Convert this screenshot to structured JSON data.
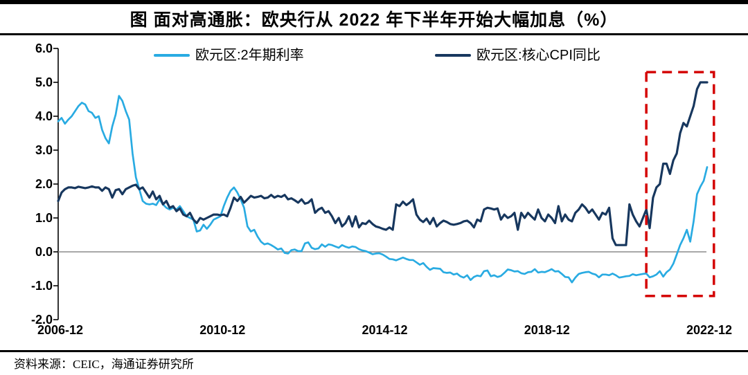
{
  "header": {
    "title": "图  面对高通胀：欧央行从 2022 年下半年开始大幅加息（%）"
  },
  "footer": {
    "source": "资料来源：CEIC，海通证券研究所"
  },
  "chart_data": {
    "type": "line",
    "title": "图  面对高通胀：欧央行从 2022 年下半年开始大幅加息（%）",
    "x_start": "2006-12",
    "x_end": "2022-12",
    "x_interval": "1 month",
    "x_tick_labels": [
      "2006-12",
      "2010-12",
      "2014-12",
      "2018-12",
      "2022-12"
    ],
    "x_tick_month_indices": [
      0,
      48,
      96,
      144,
      192
    ],
    "ylim": [
      -2.0,
      6.0
    ],
    "y_tick_labels": [
      "6.0",
      "5.0",
      "4.0",
      "3.0",
      "2.0",
      "1.0",
      "0.0",
      "-1.0",
      "-2.0"
    ],
    "y_tick_values": [
      6,
      5,
      4,
      3,
      2,
      1,
      0,
      -1,
      -2
    ],
    "grid": false,
    "zero_baseline": true,
    "zero_baseline_color": "#8C8C8C",
    "legend_position": "top",
    "series": [
      {
        "name": "欧元区:2年期利率",
        "color": "#29ABE2",
        "values": [
          3.85,
          3.95,
          3.78,
          3.9,
          4.0,
          4.15,
          4.3,
          4.4,
          4.35,
          4.15,
          4.1,
          3.95,
          4.0,
          3.6,
          3.35,
          3.2,
          3.7,
          4.05,
          4.6,
          4.45,
          4.15,
          3.9,
          2.9,
          2.2,
          1.85,
          1.5,
          1.42,
          1.4,
          1.42,
          1.38,
          1.55,
          1.4,
          1.3,
          1.25,
          1.3,
          1.25,
          1.35,
          1.2,
          1.05,
          1.0,
          0.95,
          0.6,
          0.63,
          0.8,
          0.68,
          0.8,
          0.95,
          1.0,
          1.05,
          1.35,
          1.6,
          1.8,
          1.9,
          1.75,
          1.55,
          1.3,
          0.75,
          0.6,
          0.65,
          0.45,
          0.3,
          0.22,
          0.25,
          0.2,
          0.14,
          0.07,
          0.1,
          -0.03,
          -0.05,
          0.05,
          0.07,
          0.02,
          0.02,
          0.25,
          0.28,
          0.12,
          0.08,
          0.1,
          0.22,
          0.15,
          0.22,
          0.2,
          0.16,
          0.12,
          0.2,
          0.15,
          0.12,
          0.16,
          0.14,
          0.08,
          0.04,
          0.02,
          -0.02,
          -0.07,
          -0.05,
          -0.04,
          -0.08,
          -0.14,
          -0.21,
          -0.22,
          -0.25,
          -0.21,
          -0.17,
          -0.21,
          -0.24,
          -0.24,
          -0.31,
          -0.38,
          -0.33,
          -0.44,
          -0.53,
          -0.48,
          -0.49,
          -0.5,
          -0.6,
          -0.62,
          -0.61,
          -0.67,
          -0.64,
          -0.72,
          -0.76,
          -0.69,
          -0.83,
          -0.74,
          -0.7,
          -0.72,
          -0.57,
          -0.55,
          -0.72,
          -0.69,
          -0.74,
          -0.71,
          -0.62,
          -0.52,
          -0.54,
          -0.58,
          -0.57,
          -0.63,
          -0.65,
          -0.6,
          -0.59,
          -0.51,
          -0.61,
          -0.59,
          -0.6,
          -0.56,
          -0.51,
          -0.58,
          -0.57,
          -0.65,
          -0.74,
          -0.75,
          -0.9,
          -0.76,
          -0.65,
          -0.62,
          -0.6,
          -0.59,
          -0.64,
          -0.67,
          -0.75,
          -0.67,
          -0.67,
          -0.69,
          -0.64,
          -0.69,
          -0.76,
          -0.74,
          -0.72,
          -0.71,
          -0.66,
          -0.69,
          -0.67,
          -0.65,
          -0.64,
          -0.75,
          -0.72,
          -0.67,
          -0.57,
          -0.73,
          -0.6,
          -0.52,
          -0.35,
          -0.08,
          0.2,
          0.4,
          0.65,
          0.3,
          0.9,
          1.7,
          1.92,
          2.1,
          2.5
        ]
      },
      {
        "name": "欧元区:核心CPI同比",
        "color": "#17375E",
        "values": [
          1.5,
          1.75,
          1.85,
          1.9,
          1.9,
          1.88,
          1.92,
          1.9,
          1.88,
          1.9,
          1.93,
          1.9,
          1.9,
          1.8,
          1.9,
          1.85,
          1.6,
          1.82,
          1.85,
          1.7,
          1.85,
          1.9,
          1.95,
          1.98,
          1.85,
          1.9,
          1.75,
          1.6,
          1.78,
          1.55,
          1.65,
          1.4,
          1.5,
          1.3,
          1.35,
          1.2,
          1.28,
          1.1,
          1.05,
          1.15,
          0.95,
          0.85,
          1.0,
          0.95,
          1.0,
          1.05,
          1.1,
          1.1,
          1.08,
          1.1,
          1.05,
          1.3,
          1.6,
          1.5,
          1.62,
          1.45,
          1.55,
          1.65,
          1.6,
          1.62,
          1.65,
          1.58,
          1.6,
          1.68,
          1.6,
          1.65,
          1.62,
          1.68,
          1.55,
          1.58,
          1.52,
          1.45,
          1.55,
          1.42,
          1.45,
          1.55,
          1.15,
          1.25,
          1.3,
          1.15,
          1.2,
          1.05,
          0.85,
          1.0,
          0.75,
          0.85,
          1.05,
          0.75,
          1.05,
          0.72,
          0.85,
          0.82,
          0.92,
          0.82,
          0.75,
          0.72,
          0.68,
          0.65,
          0.72,
          0.65,
          1.4,
          1.35,
          1.48,
          1.38,
          1.45,
          1.55,
          1.1,
          0.95,
          0.88,
          0.98,
          0.82,
          1.0,
          0.75,
          0.85,
          0.92,
          0.88,
          0.82,
          0.8,
          0.82,
          0.85,
          0.9,
          0.92,
          0.85,
          0.72,
          0.95,
          0.9,
          1.25,
          1.3,
          1.28,
          1.25,
          1.28,
          0.95,
          1.1,
          1.0,
          1.05,
          1.15,
          0.65,
          1.15,
          1.0,
          1.15,
          1.05,
          0.95,
          1.25,
          1.0,
          0.9,
          1.1,
          1.0,
          0.85,
          1.35,
          0.9,
          1.1,
          0.95,
          0.9,
          1.15,
          1.25,
          1.4,
          1.3,
          1.15,
          1.25,
          1.1,
          0.95,
          1.15,
          1.1,
          1.3,
          0.4,
          0.2,
          0.2,
          0.2,
          0.2,
          1.4,
          1.1,
          0.9,
          0.75,
          1.0,
          1.25,
          0.7,
          1.6,
          1.9,
          2.0,
          2.6,
          2.6,
          2.3,
          2.7,
          2.9,
          3.5,
          3.8,
          3.7,
          4.0,
          4.3,
          4.8,
          5.0,
          5.0,
          5.0
        ]
      }
    ],
    "annotation": {
      "type": "dashed-box",
      "color": "#D40000",
      "x_from_month_index": 174,
      "x_to_month_index": 194,
      "y_from": -1.3,
      "y_to": 5.3
    }
  }
}
